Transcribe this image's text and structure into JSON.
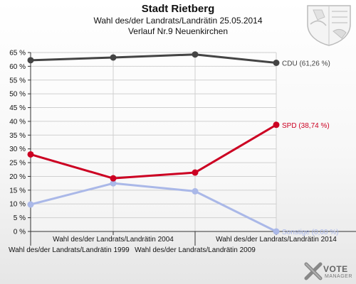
{
  "header": {
    "title": "Stadt Rietberg",
    "subtitle": "Wahl des/der Landrats/Landrätin 25.05.2014",
    "subtitle2": "Verlauf Nr.9 Neuenkirchen"
  },
  "logo": {
    "line1": "VOTE",
    "line2": "MANAGER"
  },
  "colors": {
    "CDU": "#444444",
    "SPD": "#cc0022",
    "Sonstige": "#aab8e8",
    "grid": "#d0d0d0"
  },
  "chart_data": {
    "type": "line",
    "title": "Stadt Rietberg",
    "categories": [
      "Wahl des/der Landrats/Landrätin 1999",
      "Wahl des/der Landrats/Landrätin 2004",
      "Wahl des/der Landrats/Landrätin 2009",
      "Wahl des/der Landrats/Landrätin 2014"
    ],
    "ylim": [
      0,
      65
    ],
    "yticks": [
      "0 %",
      "5 %",
      "10 %",
      "15 %",
      "20 %",
      "25 %",
      "30 %",
      "35 %",
      "40 %",
      "45 %",
      "50 %",
      "55 %",
      "60 %",
      "65 %"
    ],
    "series": [
      {
        "name": "CDU",
        "values": [
          62.2,
          63.2,
          64.3,
          61.26
        ],
        "end_label": "CDU (61,26 %)"
      },
      {
        "name": "SPD",
        "values": [
          28.0,
          19.3,
          21.4,
          38.74
        ],
        "end_label": "SPD (38,74 %)"
      },
      {
        "name": "Sonstige",
        "values": [
          9.8,
          17.5,
          14.6,
          0.0
        ],
        "end_label": "Sonstige (0,00 %)"
      }
    ],
    "grid": true
  }
}
